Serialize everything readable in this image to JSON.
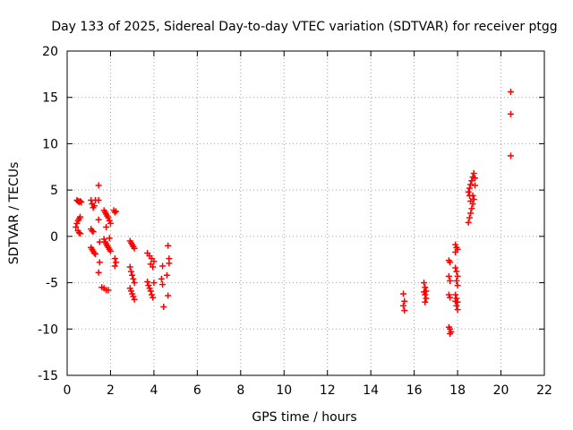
{
  "chart_data": {
    "type": "scatter",
    "title": "Day 133 of 2025, Sidereal Day-to-day VTEC variation (SDTVAR) for receiver ptgg",
    "xlabel": "GPS time / hours",
    "ylabel": "SDTVAR / TECUs",
    "xlim": [
      0,
      22
    ],
    "ylim": [
      -15,
      20
    ],
    "xticks": [
      0,
      2,
      4,
      6,
      8,
      10,
      12,
      14,
      16,
      18,
      20,
      22
    ],
    "yticks": [
      -15,
      -10,
      -5,
      0,
      5,
      10,
      15,
      20
    ],
    "grid": true,
    "marker": "+",
    "marker_color": "#ff0000",
    "series": [
      {
        "name": "SDTVAR",
        "points": [
          [
            0.45,
            3.9
          ],
          [
            0.5,
            3.8
          ],
          [
            0.55,
            3.7
          ],
          [
            0.6,
            3.8
          ],
          [
            0.65,
            3.7
          ],
          [
            0.4,
            1.0
          ],
          [
            0.45,
            1.4
          ],
          [
            0.5,
            1.7
          ],
          [
            0.55,
            1.9
          ],
          [
            0.6,
            2.1
          ],
          [
            0.5,
            0.6
          ],
          [
            0.55,
            0.4
          ],
          [
            0.6,
            0.3
          ],
          [
            1.1,
            3.9
          ],
          [
            1.15,
            3.5
          ],
          [
            1.2,
            3.1
          ],
          [
            1.25,
            3.3
          ],
          [
            1.3,
            3.9
          ],
          [
            1.1,
            0.8
          ],
          [
            1.15,
            0.6
          ],
          [
            1.2,
            0.5
          ],
          [
            1.1,
            -1.2
          ],
          [
            1.15,
            -1.4
          ],
          [
            1.2,
            -1.6
          ],
          [
            1.25,
            -1.8
          ],
          [
            1.3,
            -1.9
          ],
          [
            1.45,
            5.5
          ],
          [
            1.45,
            3.9
          ],
          [
            1.45,
            1.8
          ],
          [
            1.5,
            -0.6
          ],
          [
            1.5,
            -2.8
          ],
          [
            1.45,
            -3.9
          ],
          [
            1.6,
            -5.5
          ],
          [
            1.7,
            -5.6
          ],
          [
            1.8,
            -5.8
          ],
          [
            1.9,
            -5.8
          ],
          [
            1.7,
            2.8
          ],
          [
            1.75,
            2.6
          ],
          [
            1.8,
            2.4
          ],
          [
            1.85,
            2.2
          ],
          [
            1.9,
            2.0
          ],
          [
            1.95,
            1.7
          ],
          [
            2.0,
            1.4
          ],
          [
            1.8,
            1.0
          ],
          [
            1.7,
            -0.3
          ],
          [
            1.75,
            -0.6
          ],
          [
            1.8,
            -0.8
          ],
          [
            1.85,
            -1.0
          ],
          [
            1.9,
            -1.2
          ],
          [
            1.95,
            -1.4
          ],
          [
            2.0,
            -1.6
          ],
          [
            1.95,
            -0.2
          ],
          [
            2.15,
            2.8
          ],
          [
            2.2,
            2.6
          ],
          [
            2.25,
            2.7
          ],
          [
            2.2,
            -2.4
          ],
          [
            2.25,
            -2.8
          ],
          [
            2.2,
            -3.2
          ],
          [
            2.9,
            -0.5
          ],
          [
            2.95,
            -0.7
          ],
          [
            3.0,
            -0.9
          ],
          [
            3.05,
            -1.1
          ],
          [
            3.1,
            -1.3
          ],
          [
            2.9,
            -3.3
          ],
          [
            2.95,
            -3.8
          ],
          [
            3.0,
            -4.2
          ],
          [
            3.05,
            -4.6
          ],
          [
            3.1,
            -5.0
          ],
          [
            2.9,
            -5.6
          ],
          [
            2.95,
            -5.9
          ],
          [
            3.0,
            -6.2
          ],
          [
            3.05,
            -6.5
          ],
          [
            3.1,
            -6.8
          ],
          [
            3.7,
            -1.8
          ],
          [
            3.8,
            -2.1
          ],
          [
            3.9,
            -2.4
          ],
          [
            4.0,
            -2.7
          ],
          [
            3.85,
            -3.0
          ],
          [
            3.95,
            -3.3
          ],
          [
            3.7,
            -4.9
          ],
          [
            3.75,
            -5.3
          ],
          [
            3.8,
            -5.6
          ],
          [
            3.85,
            -5.9
          ],
          [
            3.9,
            -6.3
          ],
          [
            3.95,
            -6.6
          ],
          [
            4.0,
            -5.0
          ],
          [
            4.35,
            -4.6
          ],
          [
            4.4,
            -5.2
          ],
          [
            4.45,
            -7.6
          ],
          [
            4.4,
            -3.2
          ],
          [
            4.65,
            -1.0
          ],
          [
            4.7,
            -2.4
          ],
          [
            4.7,
            -2.9
          ],
          [
            4.6,
            -4.2
          ],
          [
            4.65,
            -6.4
          ],
          [
            15.5,
            -6.2
          ],
          [
            15.55,
            -7.0
          ],
          [
            15.5,
            -7.5
          ],
          [
            15.55,
            -8.0
          ],
          [
            16.45,
            -5.0
          ],
          [
            16.5,
            -5.5
          ],
          [
            16.55,
            -5.9
          ],
          [
            16.5,
            -6.3
          ],
          [
            16.55,
            -6.7
          ],
          [
            16.5,
            -7.1
          ],
          [
            16.45,
            -6.0
          ],
          [
            17.6,
            -9.8
          ],
          [
            17.65,
            -10.0
          ],
          [
            17.7,
            -10.3
          ],
          [
            17.65,
            -10.5
          ],
          [
            17.6,
            -2.6
          ],
          [
            17.65,
            -2.8
          ],
          [
            17.6,
            -4.3
          ],
          [
            17.65,
            -4.8
          ],
          [
            17.6,
            -6.3
          ],
          [
            17.65,
            -6.6
          ],
          [
            17.9,
            -0.9
          ],
          [
            17.95,
            -1.2
          ],
          [
            18.0,
            -1.4
          ],
          [
            17.9,
            -1.7
          ],
          [
            17.9,
            -3.4
          ],
          [
            17.95,
            -3.8
          ],
          [
            18.0,
            -4.3
          ],
          [
            17.95,
            -4.8
          ],
          [
            18.0,
            -5.3
          ],
          [
            17.9,
            -6.3
          ],
          [
            17.95,
            -6.7
          ],
          [
            18.0,
            -7.1
          ],
          [
            17.95,
            -7.5
          ],
          [
            18.0,
            -7.9
          ],
          [
            17.9,
            -7.0
          ],
          [
            18.5,
            1.5
          ],
          [
            18.55,
            2.0
          ],
          [
            18.6,
            2.5
          ],
          [
            18.65,
            3.0
          ],
          [
            18.7,
            3.5
          ],
          [
            18.75,
            4.0
          ],
          [
            18.6,
            3.8
          ],
          [
            18.7,
            4.4
          ],
          [
            18.5,
            4.8
          ],
          [
            18.55,
            5.2
          ],
          [
            18.6,
            5.6
          ],
          [
            18.65,
            6.0
          ],
          [
            18.7,
            6.4
          ],
          [
            18.75,
            6.8
          ],
          [
            18.8,
            6.3
          ],
          [
            18.55,
            4.4
          ],
          [
            18.8,
            5.5
          ],
          [
            20.45,
            15.6
          ],
          [
            20.45,
            13.2
          ],
          [
            20.45,
            8.7
          ]
        ]
      }
    ]
  }
}
